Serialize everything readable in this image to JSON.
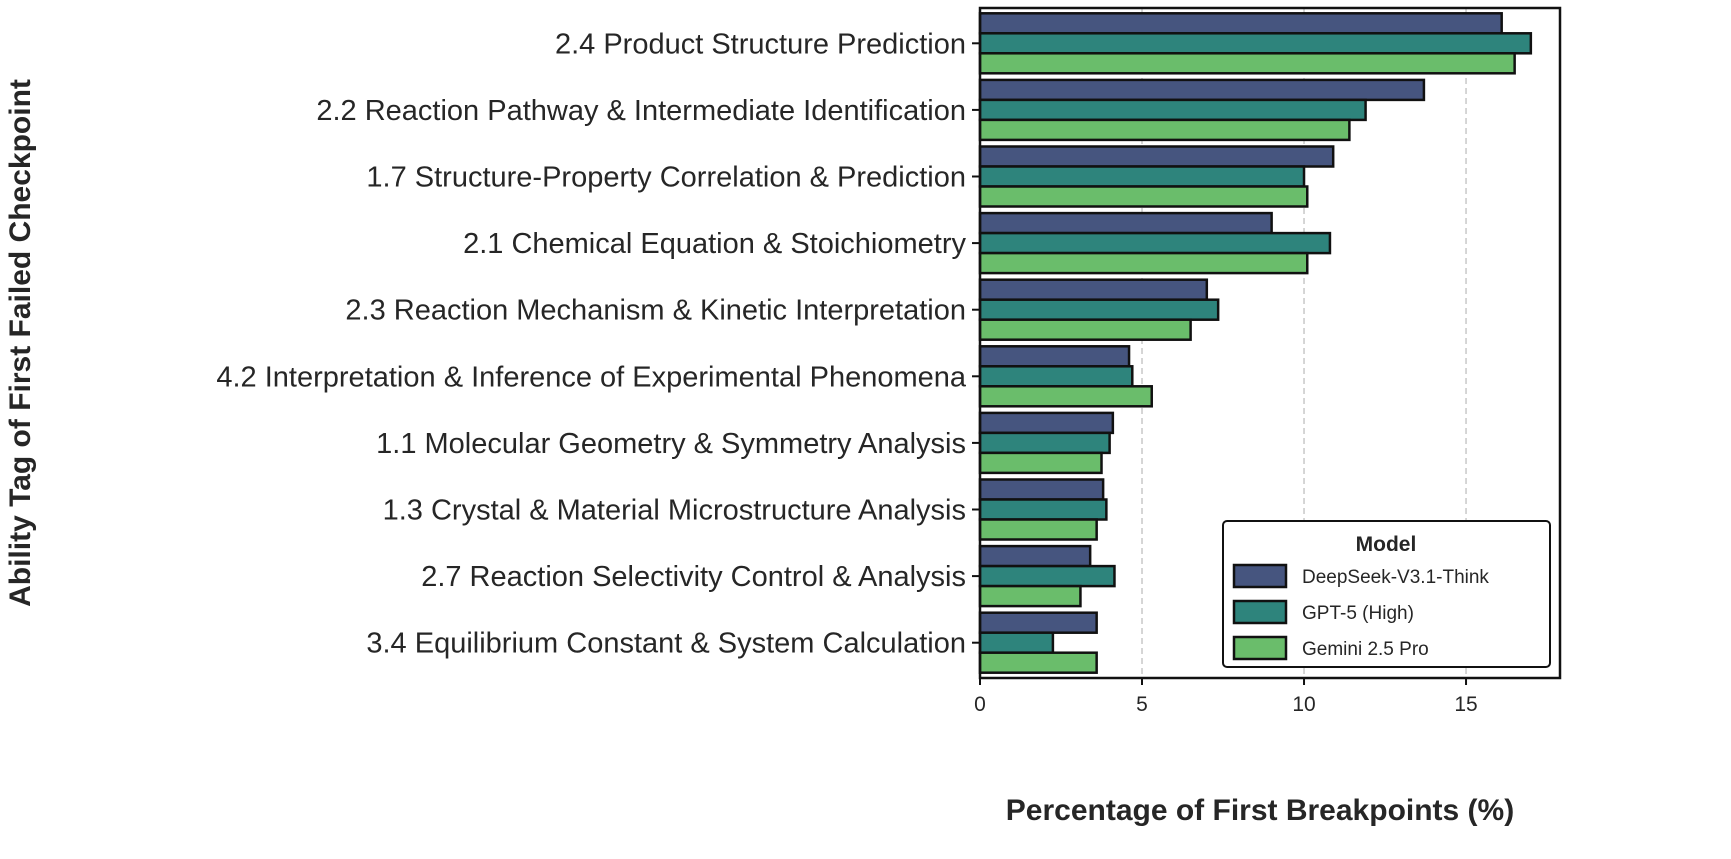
{
  "chart_data": {
    "type": "bar",
    "orientation": "horizontal",
    "title": "",
    "xlabel": "Percentage of First Breakpoints (%)",
    "ylabel": "Ability Tag of First Failed Checkpoint",
    "xlim": [
      0,
      17.9
    ],
    "xticks": [
      0,
      5,
      10,
      15
    ],
    "grid": "x, dashed",
    "legend": {
      "title": "Model",
      "placement": "bottom-right"
    },
    "categories": [
      "2.4 Product Structure Prediction",
      "2.2 Reaction Pathway & Intermediate Identification",
      "1.7 Structure-Property Correlation & Prediction",
      "2.1 Chemical Equation & Stoichiometry",
      "2.3 Reaction Mechanism & Kinetic Interpretation",
      "4.2 Interpretation & Inference of Experimental Phenomena",
      "1.1 Molecular Geometry & Symmetry Analysis",
      "1.3 Crystal & Material Microstructure Analysis",
      "2.7 Reaction Selectivity Control & Analysis",
      "3.4 Equilibrium Constant & System Calculation"
    ],
    "series": [
      {
        "name": "DeepSeek-V3.1-Think",
        "color": "#46557f",
        "values": [
          16.1,
          13.7,
          10.9,
          9.0,
          7.0,
          4.6,
          4.1,
          3.8,
          3.4,
          3.6
        ]
      },
      {
        "name": "GPT-5 (High)",
        "color": "#2e847c",
        "values": [
          17.0,
          11.9,
          10.0,
          10.8,
          7.35,
          4.7,
          4.0,
          3.9,
          4.15,
          2.25
        ]
      },
      {
        "name": "Gemini 2.5 Pro",
        "color": "#6abd6b",
        "values": [
          16.5,
          11.4,
          10.1,
          10.1,
          6.5,
          5.3,
          3.75,
          3.6,
          3.1,
          3.6
        ]
      }
    ]
  }
}
